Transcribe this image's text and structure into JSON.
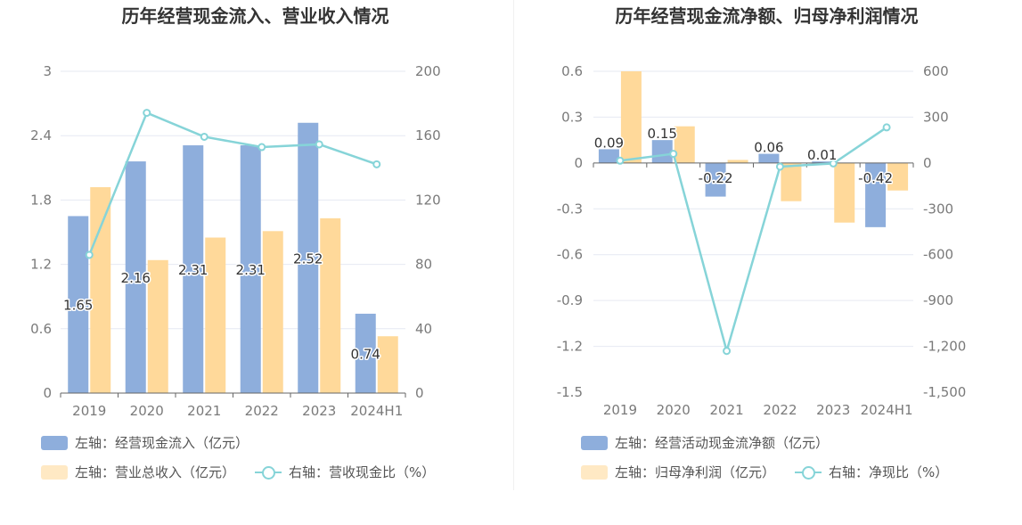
{
  "colors": {
    "bar_blue": "#8eaedc",
    "bar_yellow": "#ffd99a",
    "line_teal": "#86d4d8",
    "grid": "#e6e9f2",
    "axis": "#666666"
  },
  "chart_data": [
    {
      "type": "bar",
      "title": "历年经营现金流入、营业收入情况",
      "categories": [
        "2019",
        "2020",
        "2021",
        "2022",
        "2023",
        "2024H1"
      ],
      "left_axis": {
        "ylim": [
          0,
          3
        ],
        "ticks": [
          "0",
          "0.6",
          "1.2",
          "1.8",
          "2.4",
          "3"
        ]
      },
      "right_axis": {
        "ylim": [
          0,
          200
        ],
        "ticks": [
          "0",
          "40",
          "80",
          "120",
          "160",
          "200"
        ]
      },
      "series": [
        {
          "name": "左轴：经营现金流入（亿元）",
          "kind": "bar",
          "axis": "left",
          "color": "#8eaedc",
          "values": [
            1.65,
            2.16,
            2.31,
            2.31,
            2.52,
            0.74
          ],
          "labels": [
            "1.65",
            "2.16",
            "2.31",
            "2.31",
            "2.52",
            "0.74"
          ]
        },
        {
          "name": "左轴：营业总收入（亿元）",
          "kind": "bar",
          "axis": "left",
          "color": "#ffd99a",
          "values": [
            1.92,
            1.24,
            1.45,
            1.51,
            1.63,
            0.53
          ]
        },
        {
          "name": "右轴：营收现金比（%）",
          "kind": "line",
          "axis": "right",
          "color": "#86d4d8",
          "values": [
            85.9,
            174.2,
            159.3,
            152.9,
            154.6,
            142.2
          ]
        }
      ],
      "legend": "bottom-left",
      "grid": true
    },
    {
      "type": "bar",
      "title": "历年经营现金流净额、归母净利润情况",
      "categories": [
        "2019",
        "2020",
        "2021",
        "2022",
        "2023",
        "2024H1"
      ],
      "left_axis": {
        "ylim": [
          -1.5,
          0.6
        ],
        "ticks": [
          "-1.5",
          "-1.2",
          "-0.9",
          "-0.6",
          "-0.3",
          "0",
          "0.3",
          "0.6"
        ]
      },
      "right_axis": {
        "ylim": [
          -1500,
          600
        ],
        "ticks": [
          "-1,500",
          "-1,200",
          "-900",
          "-600",
          "-300",
          "0",
          "300",
          "600"
        ]
      },
      "series": [
        {
          "name": "左轴：经营活动现金流净额（亿元）",
          "kind": "bar",
          "axis": "left",
          "color": "#8eaedc",
          "values": [
            0.09,
            0.15,
            -0.22,
            0.06,
            0.01,
            -0.42
          ],
          "labels": [
            "0.09",
            "0.15",
            "-0.22",
            "0.06",
            "0.01",
            "-0.42"
          ]
        },
        {
          "name": "左轴：归母净利润（亿元）",
          "kind": "bar",
          "axis": "left",
          "color": "#ffd99a",
          "values": [
            0.6,
            0.24,
            0.02,
            -0.25,
            -0.39,
            -0.18
          ]
        },
        {
          "name": "右轴：净现比（%）",
          "kind": "line",
          "axis": "right",
          "color": "#86d4d8",
          "values": [
            15,
            60,
            -1230,
            -24,
            -3,
            233
          ]
        }
      ],
      "legend": "bottom-left",
      "grid": true
    }
  ]
}
